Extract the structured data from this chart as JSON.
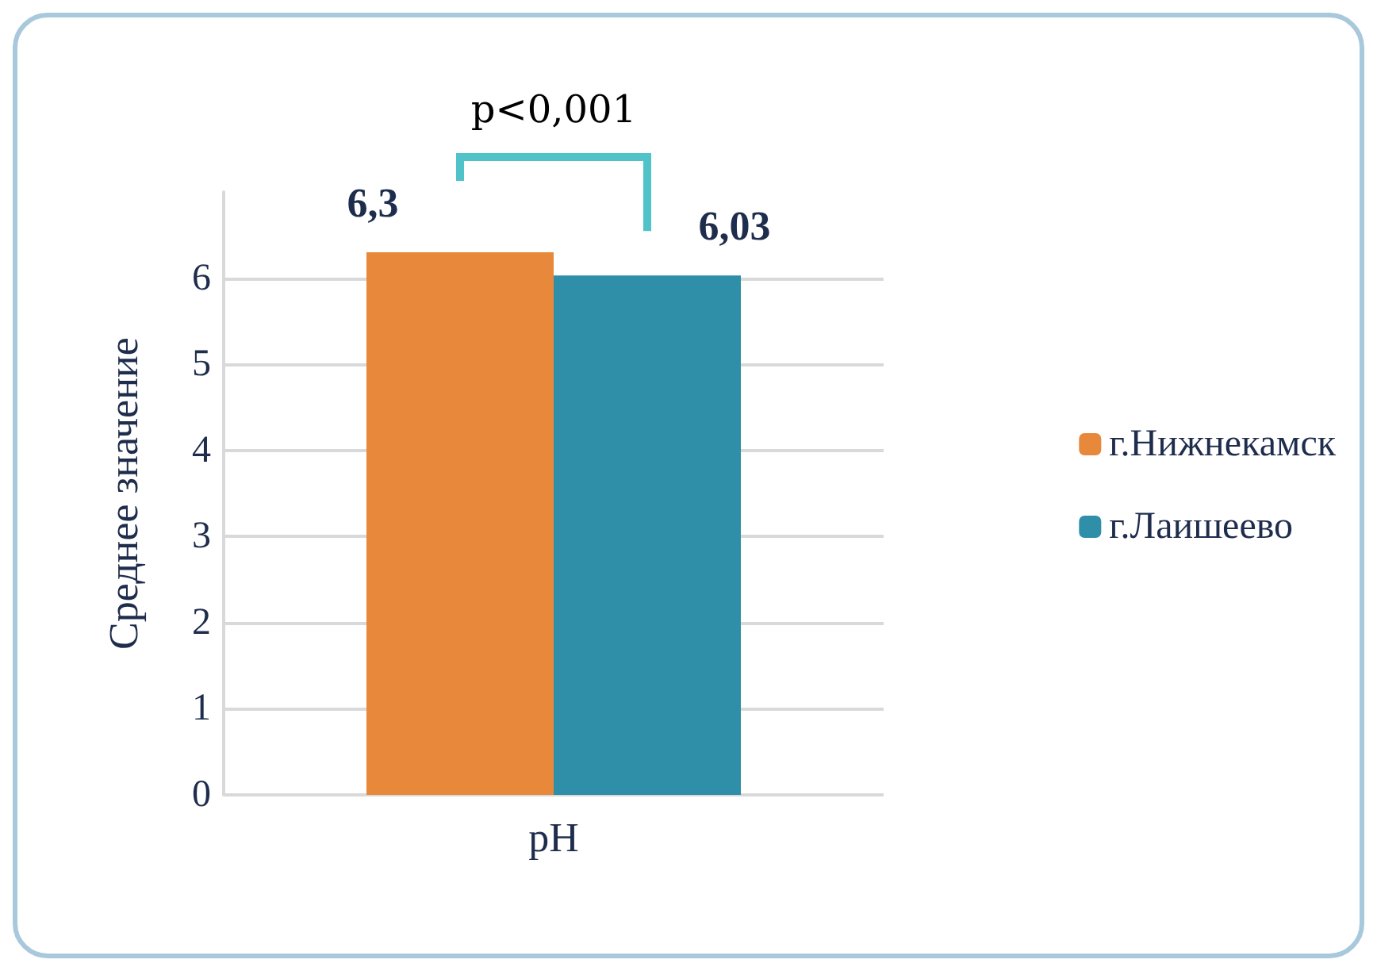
{
  "chart_data": {
    "type": "bar",
    "categories": [
      "pH"
    ],
    "ylabel": "Среднее значение",
    "series": [
      {
        "name": "г.Нижнекамск",
        "color": "#e8883a",
        "values": [
          6.3
        ],
        "value_labels": [
          "6,3"
        ]
      },
      {
        "name": "г.Лаишеево",
        "color": "#2f8fa8",
        "values": [
          6.03
        ],
        "value_labels": [
          "6,03"
        ]
      }
    ],
    "ylim": [
      0,
      7
    ],
    "yticks": [
      0,
      1,
      2,
      3,
      4,
      5,
      6
    ],
    "grid": "y",
    "legend": "right",
    "annotations": [
      "p<0,001"
    ]
  }
}
